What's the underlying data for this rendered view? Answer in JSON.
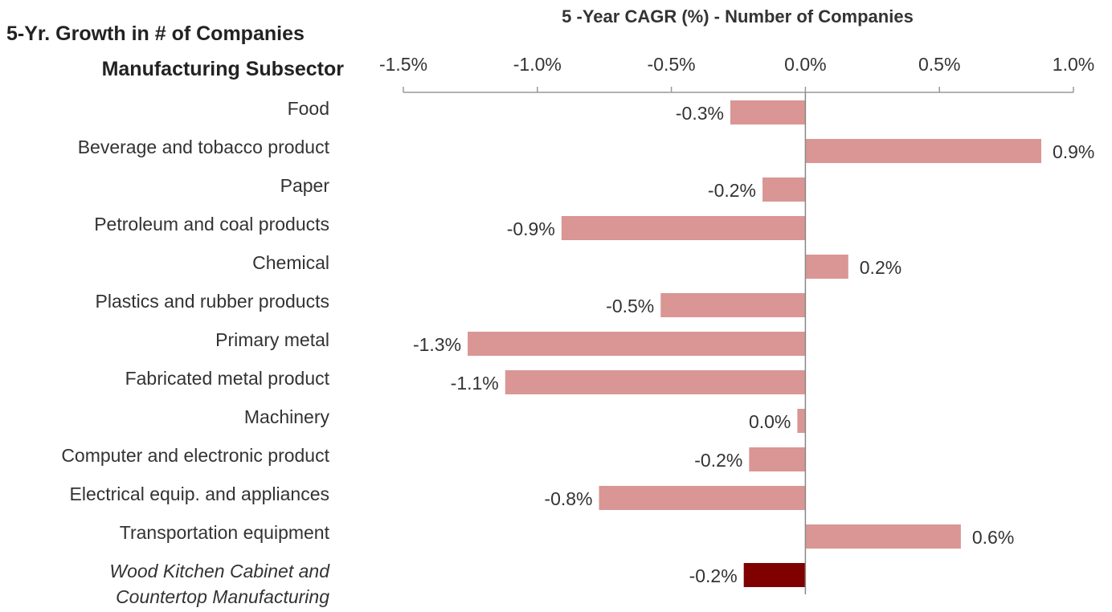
{
  "chart_data": {
    "type": "bar",
    "orientation": "horizontal",
    "title": "5 -Year CAGR (%) -  Number of Companies",
    "subtitle": "5-Yr. Growth in # of Companies",
    "y_label": "Manufacturing Subsector",
    "categories": [
      "Food",
      "Beverage and tobacco product",
      "Paper",
      "Petroleum and coal products",
      "Chemical",
      "Plastics and rubber products",
      "Primary metal",
      "Fabricated metal product",
      "Machinery",
      "Computer and electronic product",
      "Electrical equip. and appliances",
      "Transportation equipment",
      "Wood Kitchen Cabinet and Countertop Manufacturing"
    ],
    "values": [
      -0.28,
      0.88,
      -0.16,
      -0.91,
      0.16,
      -0.54,
      -1.26,
      -1.12,
      -0.03,
      -0.21,
      -0.77,
      0.58,
      -0.23
    ],
    "value_labels": [
      "-0.3%",
      "0.9%",
      "-0.2%",
      "-0.9%",
      "0.2%",
      "-0.5%",
      "-1.3%",
      "-1.1%",
      "0.0%",
      "-0.2%",
      "-0.8%",
      "0.6%",
      "-0.2%"
    ],
    "colors": [
      "#d99694",
      "#d99694",
      "#d99694",
      "#d99694",
      "#d99694",
      "#d99694",
      "#d99694",
      "#d99694",
      "#d99694",
      "#d99694",
      "#d99694",
      "#d99694",
      "#800000"
    ],
    "xlim": [
      -1.5,
      1.0
    ],
    "xticks": [
      {
        "value": -1.5,
        "label": "-1.5%"
      },
      {
        "value": -1.0,
        "label": "-1.0%"
      },
      {
        "value": -0.5,
        "label": "-0.5%"
      },
      {
        "value": 0.0,
        "label": "0.0%"
      },
      {
        "value": 0.5,
        "label": "0.5%"
      },
      {
        "value": 1.0,
        "label": "1.0%"
      }
    ],
    "grid": false
  }
}
